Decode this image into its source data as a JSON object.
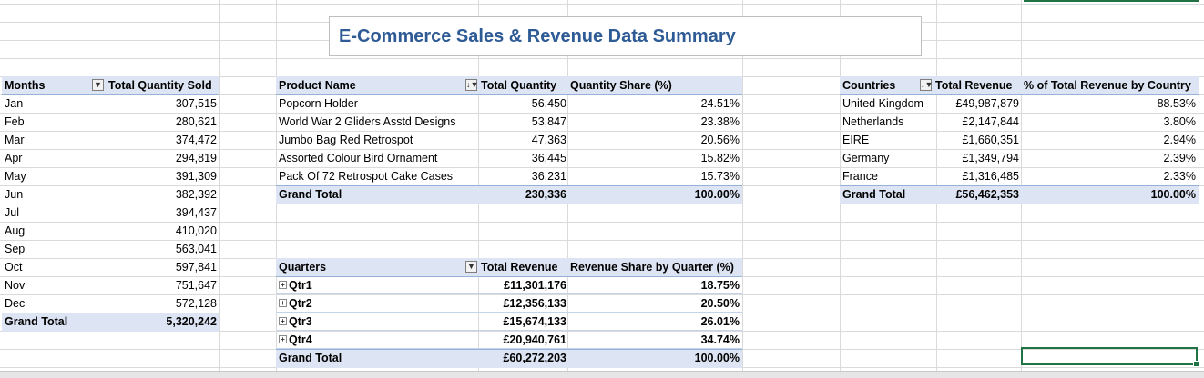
{
  "title": "E-Commerce Sales & Revenue Data Summary",
  "months_table": {
    "headers": [
      "Months",
      "Total Quantity Sold"
    ],
    "rows": [
      {
        "label": "Jan",
        "value": "307,515"
      },
      {
        "label": "Feb",
        "value": "280,621"
      },
      {
        "label": "Mar",
        "value": "374,472"
      },
      {
        "label": "Apr",
        "value": "294,819"
      },
      {
        "label": "May",
        "value": "391,309"
      },
      {
        "label": "Jun",
        "value": "382,392"
      },
      {
        "label": "Jul",
        "value": "394,437"
      },
      {
        "label": "Aug",
        "value": "410,020"
      },
      {
        "label": "Sep",
        "value": "563,041"
      },
      {
        "label": "Oct",
        "value": "597,841"
      },
      {
        "label": "Nov",
        "value": "751,647"
      },
      {
        "label": "Dec",
        "value": "572,128"
      }
    ],
    "total": {
      "label": "Grand Total",
      "value": "5,320,242"
    }
  },
  "product_table": {
    "headers": [
      "Product Name",
      "Total Quantity",
      "Quantity Share (%)"
    ],
    "rows": [
      {
        "name": "Popcorn Holder",
        "qty": "56,450",
        "share": "24.51%"
      },
      {
        "name": "World War 2 Gliders Asstd Designs",
        "qty": "53,847",
        "share": "23.38%"
      },
      {
        "name": "Jumbo Bag Red Retrospot",
        "qty": "47,363",
        "share": "20.56%"
      },
      {
        "name": "Assorted Colour Bird Ornament",
        "qty": "36,445",
        "share": "15.82%"
      },
      {
        "name": "Pack Of 72 Retrospot Cake Cases",
        "qty": "36,231",
        "share": "15.73%"
      }
    ],
    "total": {
      "name": "Grand Total",
      "qty": "230,336",
      "share": "100.00%"
    }
  },
  "country_table": {
    "headers": [
      "Countries",
      "Total Revenue",
      "% of Total Revenue by Country"
    ],
    "rows": [
      {
        "name": "United Kingdom",
        "rev": "£49,987,879",
        "pct": "88.53%"
      },
      {
        "name": "Netherlands",
        "rev": "£2,147,844",
        "pct": "3.80%"
      },
      {
        "name": "EIRE",
        "rev": "£1,660,351",
        "pct": "2.94%"
      },
      {
        "name": "Germany",
        "rev": "£1,349,794",
        "pct": "2.39%"
      },
      {
        "name": "France",
        "rev": "£1,316,485",
        "pct": "2.33%"
      }
    ],
    "total": {
      "name": "Grand Total",
      "rev": "£56,462,353",
      "pct": "100.00%"
    }
  },
  "quarter_table": {
    "headers": [
      "Quarters",
      "Total Revenue",
      "Revenue Share by Quarter (%)"
    ],
    "rows": [
      {
        "name": "Qtr1",
        "rev": "£11,301,176",
        "pct": "18.75%"
      },
      {
        "name": "Qtr2",
        "rev": "£12,356,133",
        "pct": "20.50%"
      },
      {
        "name": "Qtr3",
        "rev": "£15,674,133",
        "pct": "26.01%"
      },
      {
        "name": "Qtr4",
        "rev": "£20,940,761",
        "pct": "34.74%"
      }
    ],
    "total": {
      "name": "Grand Total",
      "rev": "£60,272,203",
      "pct": "100.00%"
    }
  },
  "icons": {
    "filter": "filter-icon",
    "sort_filter": "sort-filter-icon",
    "expand": "expand-icon"
  },
  "colors": {
    "title": "#2e5b96",
    "header_fill": "#dde4f3",
    "selection": "#217346"
  }
}
